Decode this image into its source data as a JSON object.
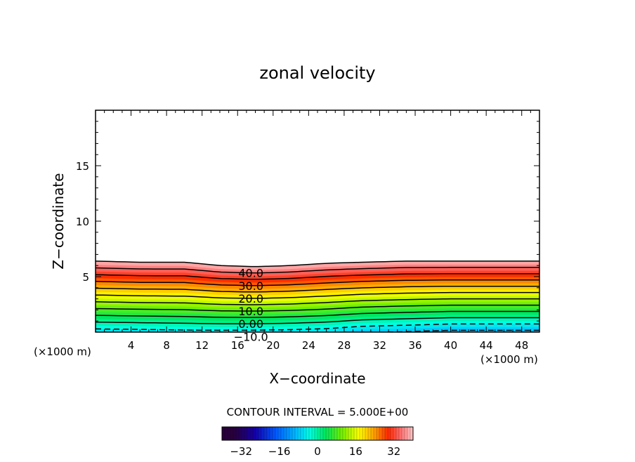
{
  "chart_data": {
    "type": "contour",
    "title": "zonal velocity",
    "xlabel": "X−coordinate",
    "ylabel": "Z−coordinate",
    "x_unit_left": "(×1000 m)",
    "x_unit_right": "(×1000 m)",
    "xlim": [
      0,
      50
    ],
    "ylim": [
      0,
      20
    ],
    "x_ticks": [
      4,
      8,
      12,
      16,
      20,
      24,
      28,
      32,
      36,
      40,
      44,
      48
    ],
    "y_ticks": [
      5,
      10,
      15
    ],
    "contour_interval_text": "CONTOUR INTERVAL = 5.000E+00",
    "contour_labels": [
      "40.0",
      "30.0",
      "20.0",
      "10.0",
      "0.00",
      "−10.0"
    ],
    "contour_levels": [
      -10,
      -5,
      0,
      5,
      10,
      15,
      20,
      25,
      30,
      35,
      40,
      45
    ],
    "field": {
      "x": [
        0,
        5,
        10,
        14,
        18,
        22,
        26,
        30,
        35,
        40,
        45,
        50
      ],
      "z_of_level_45": [
        6.4,
        6.3,
        6.3,
        6.0,
        5.9,
        6.0,
        6.2,
        6.3,
        6.4,
        6.4,
        6.4,
        6.4
      ],
      "z_of_level_0": [
        0.9,
        0.85,
        0.8,
        0.75,
        0.75,
        0.8,
        0.9,
        1.1,
        1.2,
        1.3,
        1.3,
        1.3
      ],
      "min_value": -15,
      "max_value": 45
    },
    "colorbar": {
      "range": [
        -40,
        40
      ],
      "ticks": [
        "−32",
        "−16",
        "0",
        "16",
        "32"
      ],
      "tick_values": [
        -32,
        -16,
        0,
        16,
        32
      ]
    },
    "grid": false
  }
}
